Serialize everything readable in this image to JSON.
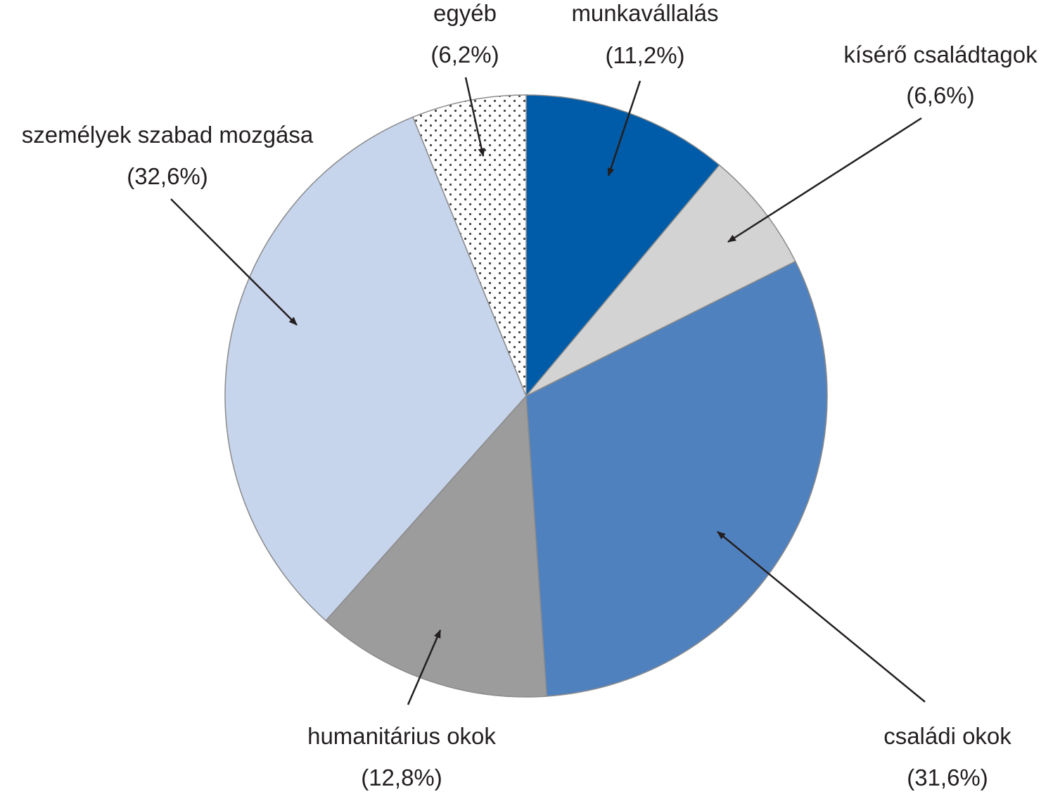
{
  "chart_data": {
    "type": "pie",
    "title": "",
    "start": "12 o'clock",
    "direction": "clockwise",
    "slices": [
      {
        "label": "munkavállalás",
        "value_label": "(11,2%)",
        "value": 11.2,
        "color": "#005ca8",
        "fill": "solid"
      },
      {
        "label": "kísérő családtagok",
        "value_label": "(6,6%)",
        "value": 6.6,
        "color": "#d3d3d3",
        "fill": "solid"
      },
      {
        "label": "családi okok",
        "value_label": "(31,6%)",
        "value": 31.6,
        "color": "#5081bf",
        "fill": "solid"
      },
      {
        "label": "humanitárius okok",
        "value_label": "(12,8%)",
        "value": 12.8,
        "color": "#9c9c9c",
        "fill": "solid"
      },
      {
        "label": "személyek szabad mozgása",
        "value_label": "(32,6%)",
        "value": 32.6,
        "color": "#c6d4ec",
        "fill": "solid"
      },
      {
        "label": "egyéb",
        "value_label": "(6,2%)",
        "value": 6.2,
        "color": "#ffffff",
        "fill": "dotted"
      }
    ]
  }
}
